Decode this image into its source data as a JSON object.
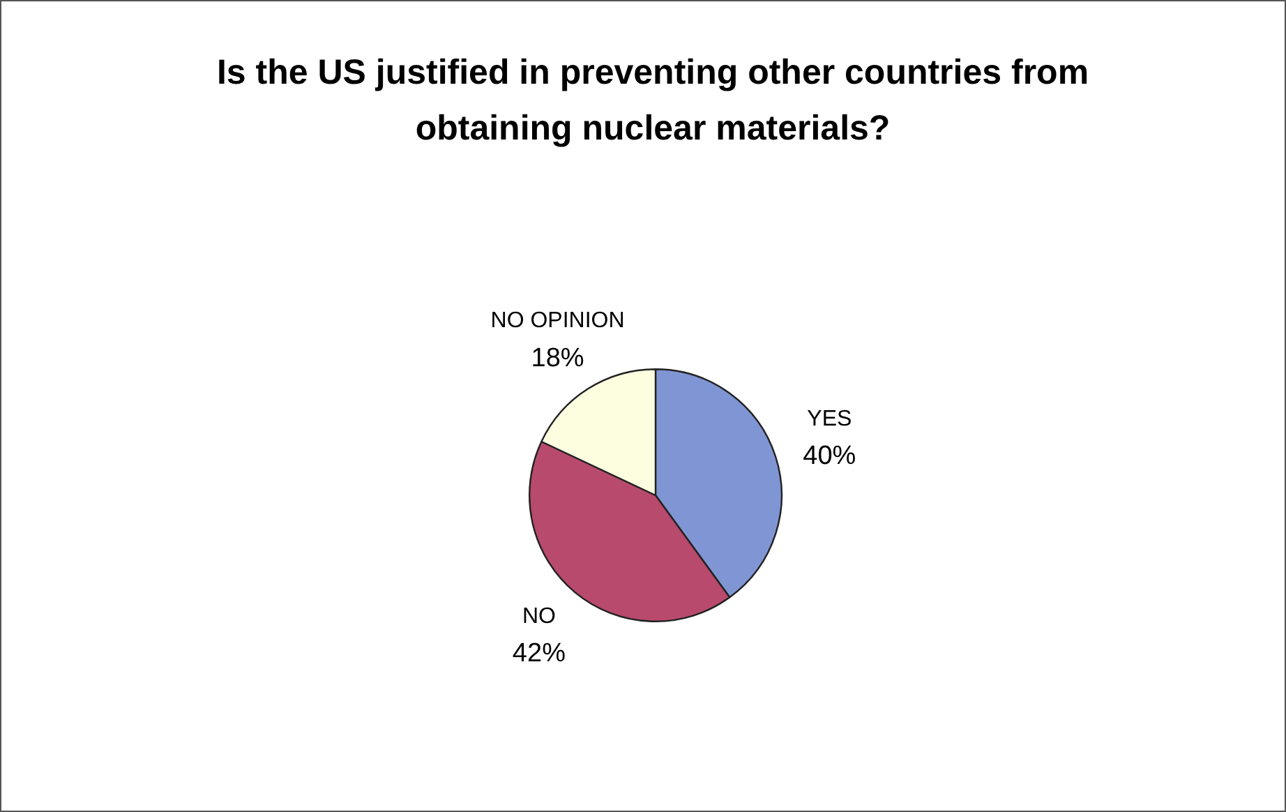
{
  "chart_data": {
    "type": "pie",
    "title": "Is the US justified in preventing other countries from obtaining nuclear materials?",
    "categories": [
      "YES",
      "NO",
      "NO OPINION"
    ],
    "values": [
      40,
      42,
      18
    ],
    "colors": [
      "#8096d4",
      "#b84a6e",
      "#fdfde0"
    ],
    "value_labels": [
      "40%",
      "42%",
      "18%"
    ],
    "legend": false
  }
}
